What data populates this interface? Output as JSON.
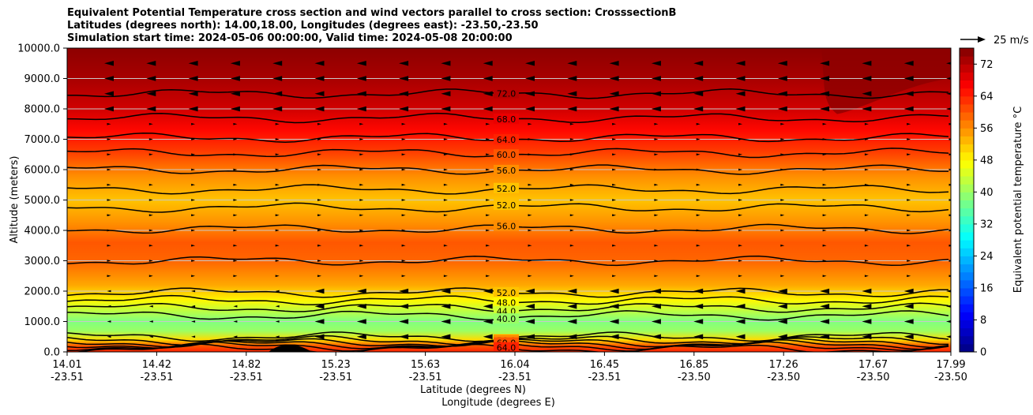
{
  "chart_data": {
    "type": "contourf",
    "title_lines": [
      "Equivalent Potential Temperature cross section and wind vectors parallel to cross section: CrosssectionB",
      "Latitudes (degrees north): 14.00,18.00, Longitudes (degrees east): -23.50,-23.50",
      "Simulation start time: 2024-05-06 00:00:00, Valid time: 2024-05-08 20:00:00"
    ],
    "ylabel": "Altitude (meters)",
    "xlabel_lat": "Latitude (degrees N)",
    "xlabel_lon": "Longitude (degrees E)",
    "ylim": [
      0,
      10000
    ],
    "y_ticks": [
      0,
      1000,
      2000,
      3000,
      4000,
      5000,
      6000,
      7000,
      8000,
      9000,
      10000
    ],
    "y_tick_labels": [
      "0.0",
      "1000.0",
      "2000.0",
      "3000.0",
      "4000.0",
      "5000.0",
      "6000.0",
      "7000.0",
      "8000.0",
      "9000.0",
      "10000.0"
    ],
    "x_ticks": [
      {
        "lat": "14.01",
        "lon": "-23.51"
      },
      {
        "lat": "14.42",
        "lon": "-23.51"
      },
      {
        "lat": "14.82",
        "lon": "-23.51"
      },
      {
        "lat": "15.23",
        "lon": "-23.51"
      },
      {
        "lat": "15.63",
        "lon": "-23.51"
      },
      {
        "lat": "16.04",
        "lon": "-23.51"
      },
      {
        "lat": "16.45",
        "lon": "-23.51"
      },
      {
        "lat": "16.85",
        "lon": "-23.50"
      },
      {
        "lat": "17.26",
        "lon": "-23.50"
      },
      {
        "lat": "17.67",
        "lon": "-23.50"
      },
      {
        "lat": "17.99",
        "lon": "-23.50"
      }
    ],
    "colorbar": {
      "label": "Equivalent potential temperature  °C",
      "range": [
        0,
        76
      ],
      "ticks": [
        0,
        8,
        16,
        24,
        32,
        40,
        48,
        56,
        64,
        72
      ],
      "tick_labels": [
        "0",
        "8",
        "16",
        "24",
        "32",
        "40",
        "48",
        "56",
        "64",
        "72"
      ]
    },
    "quiver_key": {
      "label": "25 m/s",
      "speed": 25
    },
    "profile": [
      {
        "z": 0,
        "v": 64
      },
      {
        "z": 200,
        "v": 60
      },
      {
        "z": 400,
        "v": 50
      },
      {
        "z": 700,
        "v": 40
      },
      {
        "z": 1000,
        "v": 38
      },
      {
        "z": 1300,
        "v": 42
      },
      {
        "z": 1700,
        "v": 48
      },
      {
        "z": 2200,
        "v": 54
      },
      {
        "z": 3000,
        "v": 59
      },
      {
        "z": 3600,
        "v": 60
      },
      {
        "z": 4200,
        "v": 56
      },
      {
        "z": 5000,
        "v": 52
      },
      {
        "z": 5800,
        "v": 56
      },
      {
        "z": 6600,
        "v": 62
      },
      {
        "z": 7300,
        "v": 66
      },
      {
        "z": 8000,
        "v": 70
      },
      {
        "z": 9000,
        "v": 73
      },
      {
        "z": 10000,
        "v": 75
      }
    ],
    "contours": [
      {
        "level": 72,
        "label": "72.0",
        "z": 8500
      },
      {
        "level": 68,
        "label": "68.0",
        "z": 7700
      },
      {
        "level": 64,
        "label": "64.0",
        "z": 7050
      },
      {
        "level": 60,
        "label": "60.0",
        "z": 6550
      },
      {
        "level": 56,
        "label": "56.0",
        "z": 6000
      },
      {
        "level": 52,
        "label": "52.0",
        "z": 5350
      },
      {
        "level": 52,
        "label": "52.0",
        "z": 4750
      },
      {
        "level": 56,
        "label": "56.0",
        "z": 4050
      },
      {
        "level": 56,
        "label": "",
        "z": 3000
      },
      {
        "level": 52,
        "label": "52.0",
        "z": 1950
      },
      {
        "level": 48,
        "label": "48.0",
        "z": 1700
      },
      {
        "level": 44,
        "label": "44.0",
        "z": 1450
      },
      {
        "level": 40,
        "label": "40.0",
        "z": 1200
      },
      {
        "level": 40,
        "label": "40.0",
        "z": 500
      },
      {
        "level": 44,
        "label": "44.0",
        "z": 380
      },
      {
        "level": 52,
        "label": "52.0",
        "z": 300
      },
      {
        "level": 56,
        "label": "56.0",
        "z": 240
      },
      {
        "level": 60,
        "label": "60.0",
        "z": 180
      },
      {
        "level": 64,
        "label": "64.0",
        "z": 100
      }
    ]
  }
}
